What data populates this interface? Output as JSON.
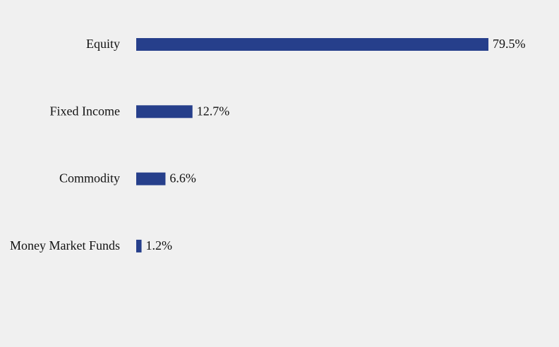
{
  "chart_data": {
    "type": "barh",
    "categories": [
      "Equity",
      "Fixed Income",
      "Commodity",
      "Money Market Funds"
    ],
    "values": [
      79.5,
      12.7,
      6.6,
      1.2
    ],
    "value_labels": [
      "79.5%",
      "12.7%",
      "6.6%",
      "1.2%"
    ],
    "color": "#263f8b"
  }
}
